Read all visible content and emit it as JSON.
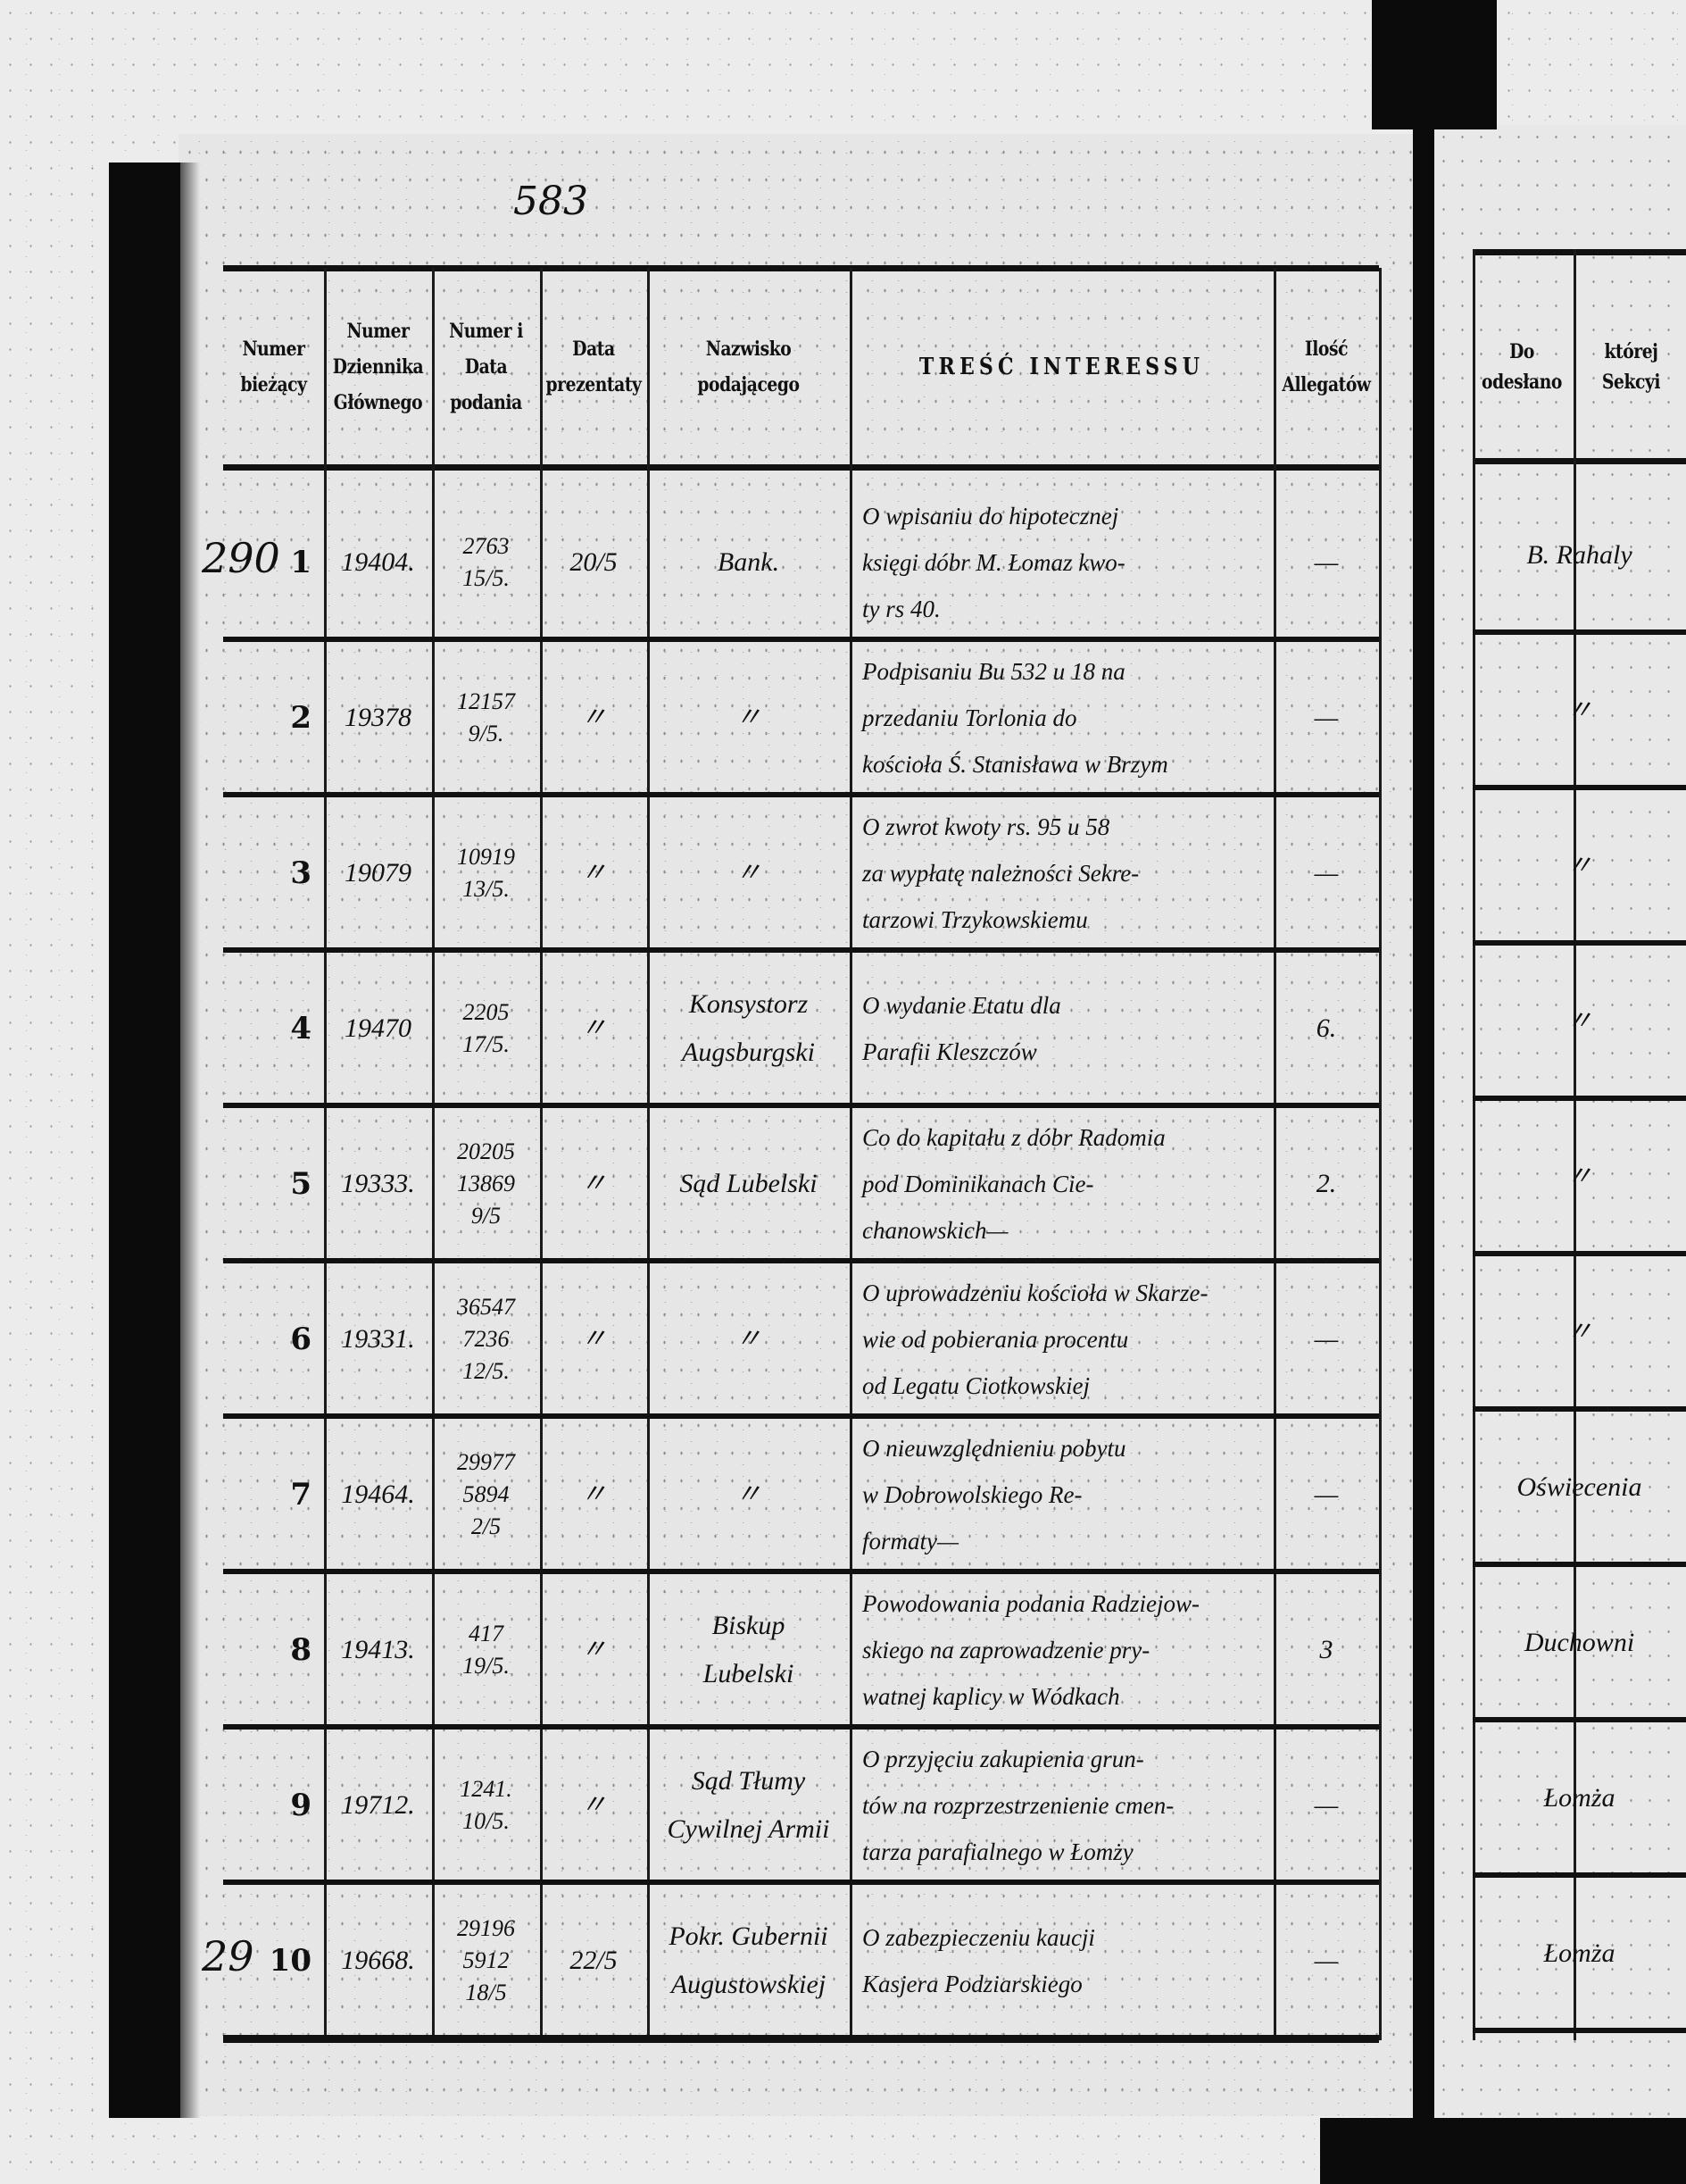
{
  "page_number": "583",
  "header": {
    "columns": [
      "Numer bieżący",
      "Numer Dziennika Głównego",
      "Numer i Data podania",
      "Data prezentaty",
      "Nazwisko podającego",
      "TREŚĆ INTERESSU",
      "Ilość Allegatów"
    ],
    "right_page": [
      "Do",
      "której",
      "odesłano",
      "Sekcyi"
    ]
  },
  "rows": [
    {
      "margin": "290",
      "num": "1",
      "journal": "19404.",
      "number_date": [
        "2763",
        "15/5."
      ],
      "presented": "20/5",
      "name": [
        "Bank."
      ],
      "content": [
        "O wpisaniu do hipotecznej",
        "księgi dóbr M. Łomaz kwo-",
        "ty rs 40."
      ],
      "allegations": "—",
      "sent_to": "B. Rahaly"
    },
    {
      "margin": "",
      "num": "2",
      "journal": "19378",
      "number_date": [
        "12157",
        "9/5."
      ],
      "presented": "〃",
      "name": [
        "〃"
      ],
      "content": [
        "Podpisaniu Bu 532 u 18 na",
        "przedaniu Torlonia do",
        "kościoła Ś. Stanisława w Brzym"
      ],
      "allegations": "—",
      "sent_to": "〃"
    },
    {
      "margin": "",
      "num": "3",
      "journal": "19079",
      "number_date": [
        "10919",
        "13/5."
      ],
      "presented": "〃",
      "name": [
        "〃"
      ],
      "content": [
        "O zwrot kwoty rs. 95 u 58",
        "za wypłatę należności Sekre-",
        "tarzowi Trzykowskiemu"
      ],
      "allegations": "—",
      "sent_to": "〃"
    },
    {
      "margin": "",
      "num": "4",
      "journal": "19470",
      "number_date": [
        "2205",
        "17/5."
      ],
      "presented": "〃",
      "name": [
        "Konsystorz",
        "Augsburgski"
      ],
      "content": [
        "O wydanie Etatu dla",
        "Parafii Kleszczów"
      ],
      "allegations": "6.",
      "sent_to": "〃"
    },
    {
      "margin": "",
      "num": "5",
      "journal": "19333.",
      "number_date": [
        "20205",
        "13869",
        "9/5"
      ],
      "presented": "〃",
      "name": [
        "Sąd Lubelski"
      ],
      "content": [
        "Co do kapitału z dóbr Radomia",
        "pod Dominikanach Cie-",
        "chanowskich—"
      ],
      "allegations": "2.",
      "sent_to": "〃"
    },
    {
      "margin": "",
      "num": "6",
      "journal": "19331.",
      "number_date": [
        "36547",
        "7236",
        "12/5."
      ],
      "presented": "〃",
      "name": [
        "〃"
      ],
      "content": [
        "O uprowadzeniu kościoła w Skarze-",
        "wie od pobierania procentu",
        "od Legatu Ciotkowskiej"
      ],
      "allegations": "—",
      "sent_to": "〃"
    },
    {
      "margin": "",
      "num": "7",
      "journal": "19464.",
      "number_date": [
        "29977",
        "5894",
        "2/5"
      ],
      "presented": "〃",
      "name": [
        "〃"
      ],
      "content": [
        "O nieuwzględnieniu pobytu",
        "w Dobrowolskiego Re-",
        "formaty—"
      ],
      "allegations": "—",
      "sent_to": "Oświecenia"
    },
    {
      "margin": "",
      "num": "8",
      "journal": "19413.",
      "number_date": [
        "417",
        "19/5."
      ],
      "presented": "〃",
      "name": [
        "Biskup",
        "Lubelski"
      ],
      "content": [
        "Powodowania podania Radziejow-",
        "skiego na zaprowadzenie pry-",
        "watnej kaplicy w Wódkach"
      ],
      "allegations": "3",
      "sent_to": "Duchowni"
    },
    {
      "margin": "",
      "num": "9",
      "journal": "19712.",
      "number_date": [
        "1241.",
        "10/5."
      ],
      "presented": "〃",
      "name": [
        "Sąd Tłumy",
        "Cywilnej Armii"
      ],
      "content": [
        "O przyjęciu zakupienia grun-",
        "tów na rozprzestrzenienie cmen-",
        "tarza parafialnego w Łomży"
      ],
      "allegations": "—",
      "sent_to": "Łomża"
    },
    {
      "margin": "29",
      "num": "10",
      "journal": "19668.",
      "number_date": [
        "29196",
        "5912",
        "18/5"
      ],
      "presented": "22/5",
      "name": [
        "Pokr. Gubernii",
        "Augustowskiej"
      ],
      "content": [
        "O zabezpieczeniu kaucji",
        "Kasjera Podziarskiego"
      ],
      "allegations": "—",
      "sent_to": "Łomża"
    }
  ]
}
